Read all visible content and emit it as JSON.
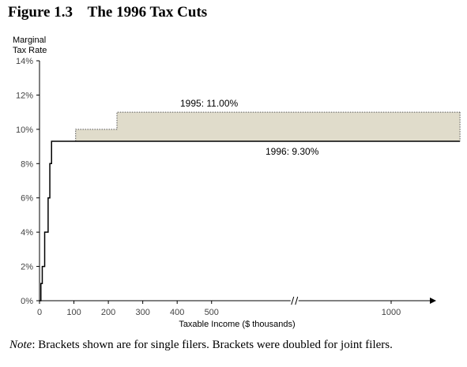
{
  "figure": {
    "number": "Figure 1.3",
    "title": "The 1996 Tax Cuts"
  },
  "note": {
    "label": "Note",
    "text": ": Brackets shown are for single filers. Brackets were doubled for joint filers."
  },
  "chart_data": {
    "type": "line",
    "title": "Figure 1.3    The 1996 Tax Cuts",
    "ylabel_lines": [
      "Marginal",
      "Tax Rate"
    ],
    "xlabel": "Taxable Income ($ thousands)",
    "ylim": [
      0,
      14
    ],
    "yticks": [
      0,
      2,
      4,
      6,
      8,
      10,
      12,
      14
    ],
    "ytick_labels": [
      "0%",
      "2%",
      "4%",
      "6%",
      "8%",
      "10%",
      "12%",
      "14%"
    ],
    "xticks": [
      0,
      100,
      200,
      300,
      400,
      500,
      1000
    ],
    "xtick_labels": [
      "0",
      "100",
      "200",
      "300",
      "400",
      "500",
      "1000"
    ],
    "x_axis_break": {
      "after": 500,
      "before": 1000
    },
    "grid": false,
    "series": [
      {
        "label": "1995: 11.00%",
        "style": "dotted",
        "fill": "#e0dccb",
        "points": [
          [
            105,
            10
          ],
          [
            225,
            10
          ],
          [
            225,
            11
          ],
          [
            1200,
            11
          ]
        ]
      },
      {
        "label": "1996: 9.30%",
        "style": "solid",
        "points": [
          [
            0,
            0
          ],
          [
            4,
            1
          ],
          [
            8,
            2
          ],
          [
            15,
            4
          ],
          [
            25,
            6
          ],
          [
            30,
            8
          ],
          [
            35,
            9.3
          ],
          [
            1200,
            9.3
          ]
        ]
      }
    ],
    "colors": {
      "solid": "#000000",
      "dotted": "#555555",
      "fill": "#e0dccb"
    }
  }
}
